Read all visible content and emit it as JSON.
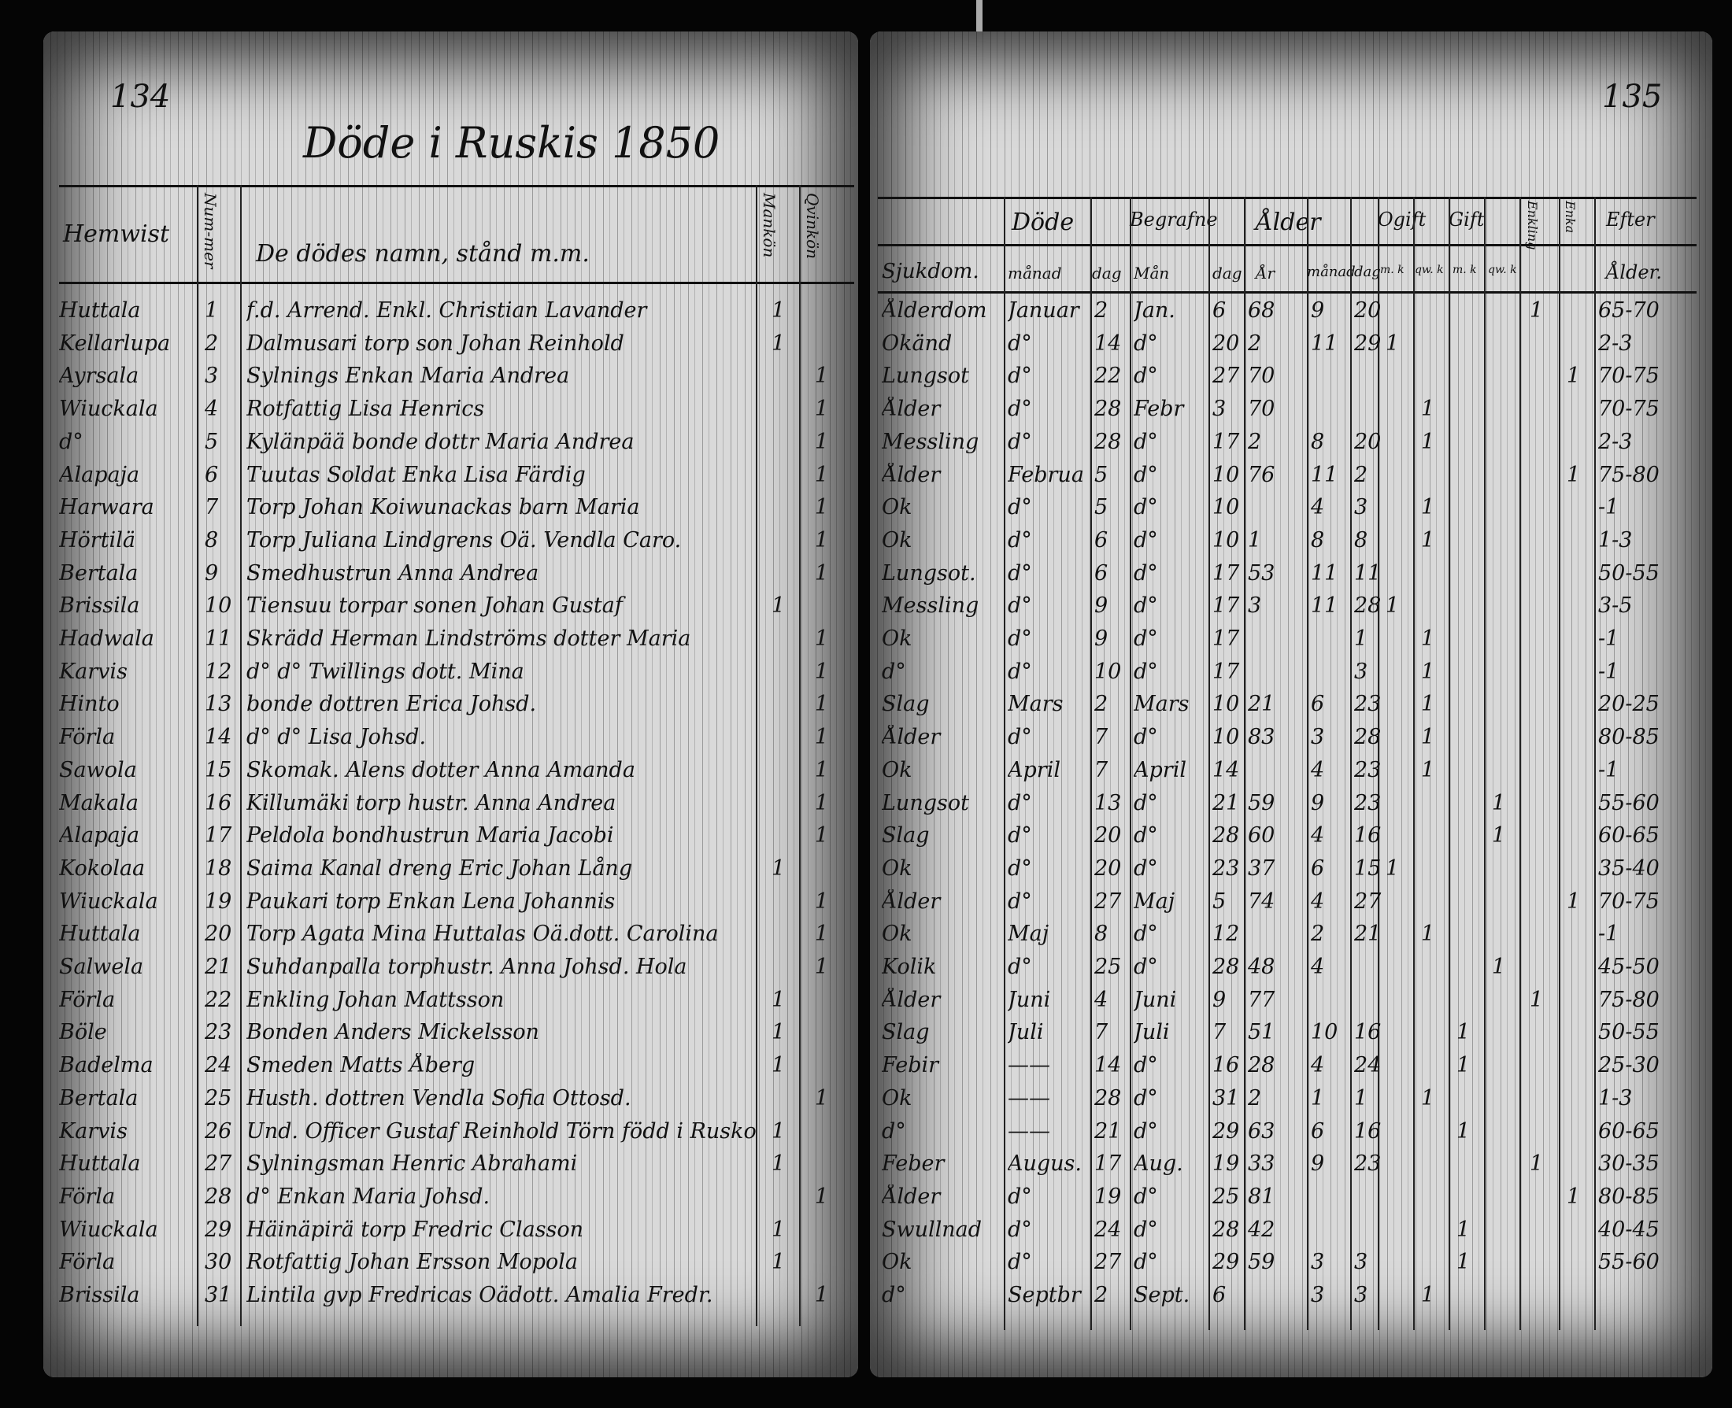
{
  "left_page": {
    "page_number": "134",
    "title": "Döde i Ruskis 1850",
    "headers": {
      "hemwist": "Hemwist",
      "nummer": "Num-mer",
      "name": "De dödes namn, stånd m.m.",
      "mankon": "Mankön",
      "qvinkon": "Qvinkön"
    },
    "rows": [
      {
        "hemwist": "Huttala",
        "nr": "1",
        "name": "f.d. Arrend. Enkl. Christian Lavander",
        "m": "1",
        "q": ""
      },
      {
        "hemwist": "Kellarlupa",
        "nr": "2",
        "name": "Dalmusari torp son Johan Reinhold",
        "m": "1",
        "q": ""
      },
      {
        "hemwist": "Ayrsala",
        "nr": "3",
        "name": "Sylnings Enkan Maria Andrea",
        "m": "",
        "q": "1"
      },
      {
        "hemwist": "Wiuckala",
        "nr": "4",
        "name": "Rotfattig Lisa Henrics",
        "m": "",
        "q": "1"
      },
      {
        "hemwist": "d°",
        "nr": "5",
        "name": "Kylänpää bonde dottr Maria Andrea",
        "m": "",
        "q": "1"
      },
      {
        "hemwist": "Alapaja",
        "nr": "6",
        "name": "Tuutas Soldat Enka Lisa Färdig",
        "m": "",
        "q": "1"
      },
      {
        "hemwist": "Harwara",
        "nr": "7",
        "name": "Torp Johan Koiwunackas barn Maria",
        "m": "",
        "q": "1"
      },
      {
        "hemwist": "Hörtilä",
        "nr": "8",
        "name": "Torp Juliana Lindgrens Oä. Vendla Caro.",
        "m": "",
        "q": "1"
      },
      {
        "hemwist": "Bertala",
        "nr": "9",
        "name": "Smedhustrun Anna Andrea",
        "m": "",
        "q": "1"
      },
      {
        "hemwist": "Brissila",
        "nr": "10",
        "name": "Tiensuu torpar sonen Johan Gustaf",
        "m": "1",
        "q": ""
      },
      {
        "hemwist": "Hadwala",
        "nr": "11",
        "name": "Skrädd Herman Lindströms dotter Maria",
        "m": "",
        "q": "1"
      },
      {
        "hemwist": "Karvis",
        "nr": "12",
        "name": "d°   d°   Twillings dott. Mina",
        "m": "",
        "q": "1"
      },
      {
        "hemwist": "Hinto",
        "nr": "13",
        "name": "bonde dottren Erica Johsd.",
        "m": "",
        "q": "1"
      },
      {
        "hemwist": "Förla",
        "nr": "14",
        "name": "d°   d°   Lisa Johsd.",
        "m": "",
        "q": "1"
      },
      {
        "hemwist": "Sawola",
        "nr": "15",
        "name": "Skomak. Alens dotter Anna Amanda",
        "m": "",
        "q": "1"
      },
      {
        "hemwist": "Makala",
        "nr": "16",
        "name": "Killumäki torp hustr. Anna Andrea",
        "m": "",
        "q": "1"
      },
      {
        "hemwist": "Alapaja",
        "nr": "17",
        "name": "Peldola bondhustrun Maria Jacobi",
        "m": "",
        "q": "1"
      },
      {
        "hemwist": "Kokolaa",
        "nr": "18",
        "name": "Saima Kanal dreng Eric Johan Lång",
        "m": "1",
        "q": ""
      },
      {
        "hemwist": "Wiuckala",
        "nr": "19",
        "name": "Paukari torp Enkan Lena Johannis",
        "m": "",
        "q": "1"
      },
      {
        "hemwist": "Huttala",
        "nr": "20",
        "name": "Torp Agata Mina Huttalas Oä.dott. Carolina",
        "m": "",
        "q": "1"
      },
      {
        "hemwist": "Salwela",
        "nr": "21",
        "name": "Suhdanpalla torphustr. Anna Johsd. Hola",
        "m": "",
        "q": "1"
      },
      {
        "hemwist": "Förla",
        "nr": "22",
        "name": "Enkling Johan Mattsson",
        "m": "1",
        "q": ""
      },
      {
        "hemwist": "Böle",
        "nr": "23",
        "name": "Bonden Anders Mickelsson",
        "m": "1",
        "q": ""
      },
      {
        "hemwist": "Badelma",
        "nr": "24",
        "name": "Smeden Matts Åberg",
        "m": "1",
        "q": ""
      },
      {
        "hemwist": "Bertala",
        "nr": "25",
        "name": "Husth. dottren Vendla Sofia Ottosd.",
        "m": "",
        "q": "1"
      },
      {
        "hemwist": "Karvis",
        "nr": "26",
        "name": "Und. Officer Gustaf Reinhold Törn född i Rusko",
        "m": "1",
        "q": ""
      },
      {
        "hemwist": "Huttala",
        "nr": "27",
        "name": "Sylningsman Henric Abrahami",
        "m": "1",
        "q": ""
      },
      {
        "hemwist": "Förla",
        "nr": "28",
        "name": "d°   Enkan Maria Johsd.",
        "m": "",
        "q": "1"
      },
      {
        "hemwist": "Wiuckala",
        "nr": "29",
        "name": "Häinäpirä torp Fredric Classon",
        "m": "1",
        "q": ""
      },
      {
        "hemwist": "Förla",
        "nr": "30",
        "name": "Rotfattig Johan Ersson Mopola",
        "m": "1",
        "q": ""
      },
      {
        "hemwist": "Brissila",
        "nr": "31",
        "name": "Lintila gvp Fredricas Oädott. Amalia Fredr.",
        "m": "",
        "q": "1"
      }
    ]
  },
  "right_page": {
    "page_number": "135",
    "headers": {
      "dode": "Döde",
      "begrafne": "Begrafne",
      "alder": "Ålder",
      "ogift": "Ogift",
      "gift": "Gift",
      "enkling": "Enkling",
      "enka": "Enka",
      "efter": "Efter",
      "sjukdom": "Sjukdom.",
      "manad": "månad",
      "dag": "dag",
      "man": "Mån",
      "dag2": "dag",
      "ar": "År",
      "manad2": "månad",
      "dag3": "dag",
      "m": "m. k",
      "q": "qw. k",
      "gm": "m. k",
      "gq": "qw. k",
      "efter_alder": "Ålder."
    },
    "rows": [
      [
        "Ålderdom",
        "Januar",
        "2",
        "Jan.",
        "6",
        "68",
        "9",
        "20",
        "",
        "",
        "",
        "",
        "1",
        "",
        "65-70"
      ],
      [
        "Okänd",
        "d°",
        "14",
        "d°",
        "20",
        "2",
        "11",
        "29",
        "1",
        "",
        "",
        "",
        "",
        "",
        "2-3"
      ],
      [
        "Lungsot",
        "d°",
        "22",
        "d°",
        "27",
        "70",
        "",
        "",
        "",
        "",
        "",
        "",
        "",
        "1",
        "70-75"
      ],
      [
        "Ålder",
        "d°",
        "28",
        "Febr",
        "3",
        "70",
        "",
        "",
        "",
        "1",
        "",
        "",
        "",
        "",
        "70-75"
      ],
      [
        "Messling",
        "d°",
        "28",
        "d°",
        "17",
        "2",
        "8",
        "20",
        "",
        "1",
        "",
        "",
        "",
        "",
        "2-3"
      ],
      [
        "Ålder",
        "Februa",
        "5",
        "d°",
        "10",
        "76",
        "11",
        "2",
        "",
        "",
        "",
        "",
        "",
        "1",
        "75-80"
      ],
      [
        "Ok",
        "d°",
        "5",
        "d°",
        "10",
        "",
        "4",
        "3",
        "",
        "1",
        "",
        "",
        "",
        "",
        "-1"
      ],
      [
        "Ok",
        "d°",
        "6",
        "d°",
        "10",
        "1",
        "8",
        "8",
        "",
        "1",
        "",
        "",
        "",
        "",
        "1-3"
      ],
      [
        "Lungsot.",
        "d°",
        "6",
        "d°",
        "17",
        "53",
        "11",
        "11",
        "",
        "",
        "",
        "",
        "",
        "",
        "50-55"
      ],
      [
        "Messling",
        "d°",
        "9",
        "d°",
        "17",
        "3",
        "11",
        "28",
        "1",
        "",
        "",
        "",
        "",
        "",
        "3-5"
      ],
      [
        "Ok",
        "d°",
        "9",
        "d°",
        "17",
        "",
        "",
        "1",
        "",
        "1",
        "",
        "",
        "",
        "",
        "-1"
      ],
      [
        "d°",
        "d°",
        "10",
        "d°",
        "17",
        "",
        "",
        "3",
        "",
        "1",
        "",
        "",
        "",
        "",
        "-1"
      ],
      [
        "Slag",
        "Mars",
        "2",
        "Mars",
        "10",
        "21",
        "6",
        "23",
        "",
        "1",
        "",
        "",
        "",
        "",
        "20-25"
      ],
      [
        "Ålder",
        "d°",
        "7",
        "d°",
        "10",
        "83",
        "3",
        "28",
        "",
        "1",
        "",
        "",
        "",
        "",
        "80-85"
      ],
      [
        "Ok",
        "April",
        "7",
        "April",
        "14",
        "",
        "4",
        "23",
        "",
        "1",
        "",
        "",
        "",
        "",
        "-1"
      ],
      [
        "Lungsot",
        "d°",
        "13",
        "d°",
        "21",
        "59",
        "9",
        "23",
        "",
        "",
        "",
        "1",
        "",
        "",
        "55-60"
      ],
      [
        "Slag",
        "d°",
        "20",
        "d°",
        "28",
        "60",
        "4",
        "16",
        "",
        "",
        "",
        "1",
        "",
        "",
        "60-65"
      ],
      [
        "Ok",
        "d°",
        "20",
        "d°",
        "23",
        "37",
        "6",
        "15",
        "1",
        "",
        "",
        "",
        "",
        "",
        "35-40"
      ],
      [
        "Ålder",
        "d°",
        "27",
        "Maj",
        "5",
        "74",
        "4",
        "27",
        "",
        "",
        "",
        "",
        "",
        "1",
        "70-75"
      ],
      [
        "Ok",
        "Maj",
        "8",
        "d°",
        "12",
        "",
        "2",
        "21",
        "",
        "1",
        "",
        "",
        "",
        "",
        "-1"
      ],
      [
        "Kolik",
        "d°",
        "25",
        "d°",
        "28",
        "48",
        "4",
        "",
        "",
        "",
        "",
        "1",
        "",
        "",
        "45-50"
      ],
      [
        "Ålder",
        "Juni",
        "4",
        "Juni",
        "9",
        "77",
        "",
        "",
        "",
        "",
        "",
        "",
        "1",
        "",
        "75-80"
      ],
      [
        "Slag",
        "Juli",
        "7",
        "Juli",
        "7",
        "51",
        "10",
        "16",
        "",
        "",
        "1",
        "",
        "",
        "",
        "50-55"
      ],
      [
        "Febir",
        "——",
        "14",
        "d°",
        "16",
        "28",
        "4",
        "24",
        "",
        "",
        "1",
        "",
        "",
        "",
        "25-30"
      ],
      [
        "Ok",
        "——",
        "28",
        "d°",
        "31",
        "2",
        "1",
        "1",
        "",
        "1",
        "",
        "",
        "",
        "",
        "1-3"
      ],
      [
        "d°",
        "——",
        "21",
        "d°",
        "29",
        "63",
        "6",
        "16",
        "",
        "",
        "1",
        "",
        "",
        "",
        "60-65"
      ],
      [
        "Feber",
        "Augus.",
        "17",
        "Aug.",
        "19",
        "33",
        "9",
        "23",
        "",
        "",
        "",
        "",
        "1",
        "",
        "30-35"
      ],
      [
        "Ålder",
        "d°",
        "19",
        "d°",
        "25",
        "81",
        "",
        "",
        "",
        "",
        "",
        "",
        "",
        "1",
        "80-85"
      ],
      [
        "Swullnad",
        "d°",
        "24",
        "d°",
        "28",
        "42",
        "",
        "",
        "",
        "",
        "1",
        "",
        "",
        "",
        "40-45"
      ],
      [
        "Ok",
        "d°",
        "27",
        "d°",
        "29",
        "59",
        "3",
        "3",
        "",
        "",
        "1",
        "",
        "",
        "",
        "55-60"
      ],
      [
        "d°",
        "Septbr",
        "2",
        "Sept.",
        "6",
        "",
        "3",
        "3",
        "",
        "1",
        "",
        "",
        "",
        "",
        ""
      ]
    ]
  }
}
